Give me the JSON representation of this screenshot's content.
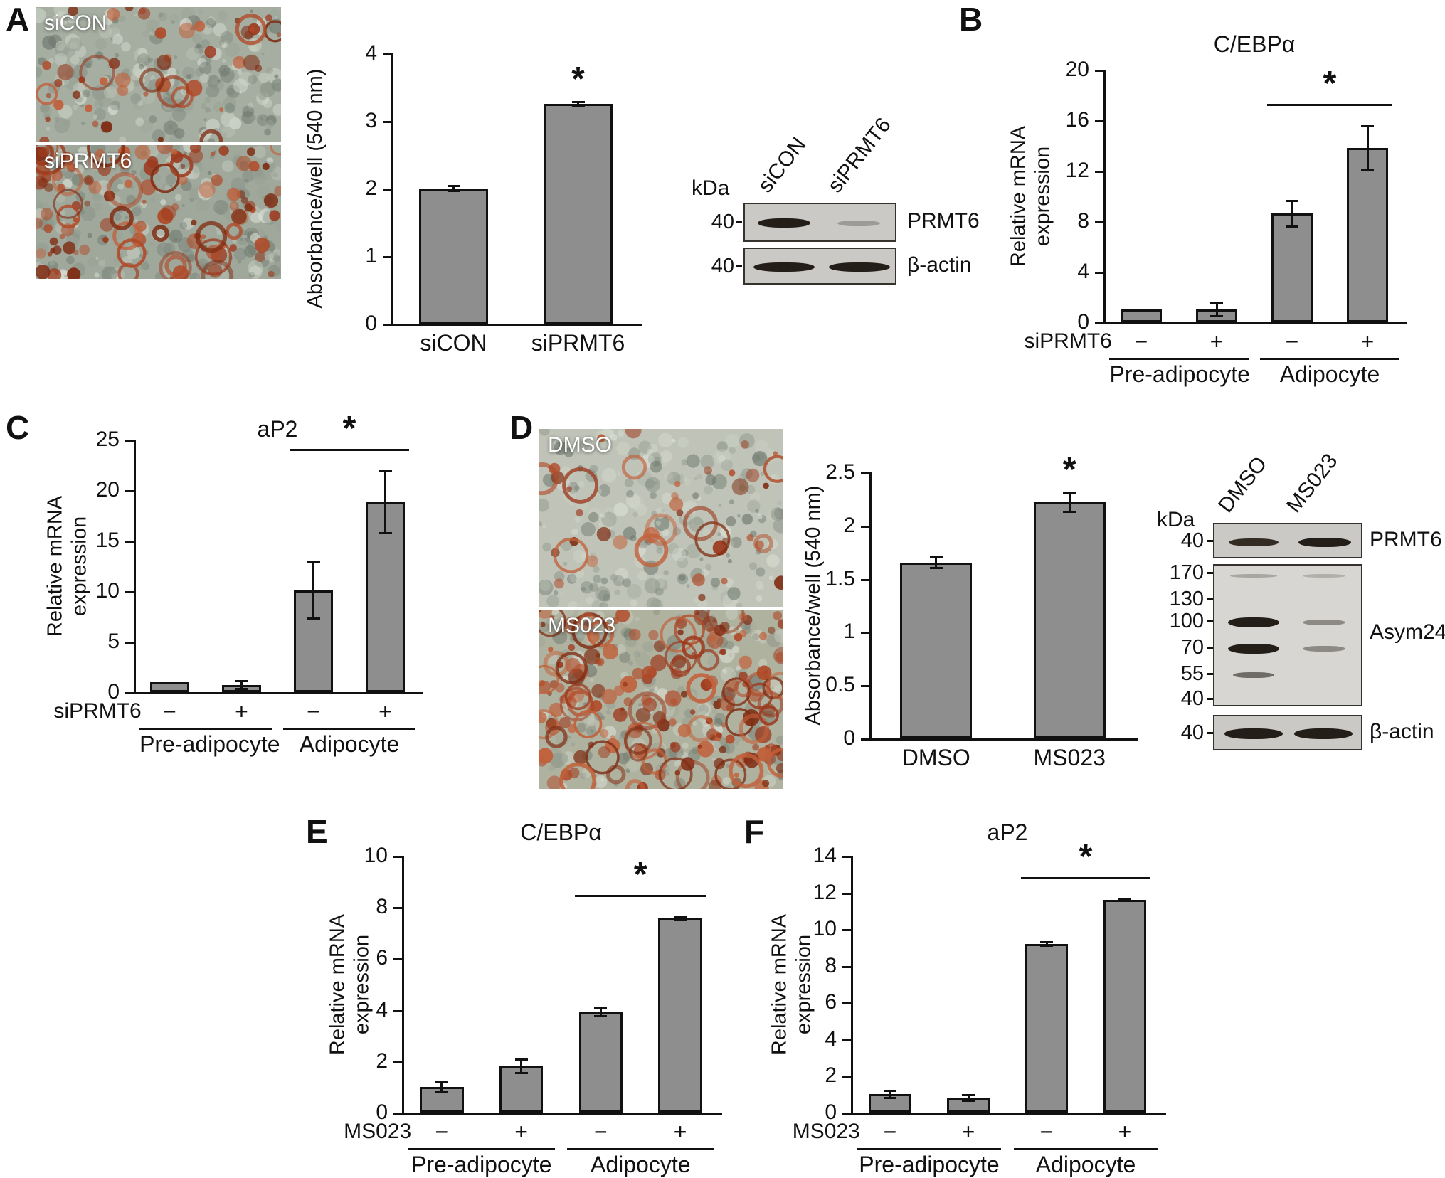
{
  "panels": {
    "A": {
      "label": "A",
      "images": [
        {
          "label": "siCON"
        },
        {
          "label": "siPRMT6"
        }
      ],
      "blot": {
        "kda_header": "kDa",
        "lanes": [
          "siCON",
          "siPRMT6"
        ],
        "rows": [
          {
            "marker": "40",
            "label": "PRMT6"
          },
          {
            "marker": "40",
            "label": "β-actin"
          }
        ]
      }
    },
    "B": {
      "label": "B"
    },
    "C": {
      "label": "C"
    },
    "D": {
      "label": "D",
      "images": [
        {
          "label": "DMSO"
        },
        {
          "label": "MS023"
        }
      ],
      "blot": {
        "kda_header": "kDa",
        "lanes": [
          "DMSO",
          "MS023"
        ],
        "sections": [
          {
            "markers": [
              "40"
            ],
            "label": "PRMT6"
          },
          {
            "markers": [
              "170",
              "130",
              "100",
              "70",
              "55",
              "40"
            ],
            "label": "Asym24"
          },
          {
            "markers": [
              "40"
            ],
            "label": "β-actin"
          }
        ]
      }
    },
    "E": {
      "label": "E"
    },
    "F": {
      "label": "F"
    }
  },
  "chart_data": [
    {
      "panel": "A",
      "type": "bar",
      "title": "",
      "categories": [
        "siCON",
        "siPRMT6"
      ],
      "values": [
        2.0,
        3.25
      ],
      "errors": [
        0.05,
        0.05
      ],
      "ylabel": "Absorbance/well (540 nm)",
      "xlabel": "",
      "ylim": [
        0,
        4
      ],
      "yticks": [
        0,
        1,
        2,
        3,
        4
      ],
      "sig_bar_index": 1,
      "sig_symbol": "*",
      "grid": false,
      "legend": false
    },
    {
      "panel": "B",
      "type": "bar",
      "title": "C/EBPα",
      "categories": [
        "−",
        "+",
        "−",
        "+"
      ],
      "values": [
        1.0,
        1.0,
        8.6,
        13.8
      ],
      "errors": [
        0,
        0.6,
        1.1,
        1.8
      ],
      "ylabel": "Relative mRNA\nexpression",
      "xlabel": "",
      "ylim": [
        0,
        20
      ],
      "yticks": [
        0,
        4,
        8,
        12,
        16,
        20
      ],
      "row_label": "siPRMT6",
      "groups": [
        {
          "label": "Pre-adipocyte",
          "span": [
            0,
            1
          ]
        },
        {
          "label": "Adipocyte",
          "span": [
            2,
            3
          ]
        }
      ],
      "bracket": {
        "from": 2,
        "to": 3,
        "symbol": "*"
      },
      "grid": false,
      "legend": false
    },
    {
      "panel": "C",
      "type": "bar",
      "title": "aP2",
      "categories": [
        "−",
        "+",
        "−",
        "+"
      ],
      "values": [
        1.0,
        0.7,
        10.1,
        18.8
      ],
      "errors": [
        0,
        0.5,
        2.9,
        3.2
      ],
      "ylabel": "Relative mRNA\nexpression",
      "xlabel": "",
      "ylim": [
        0,
        25
      ],
      "yticks": [
        0,
        5,
        10,
        15,
        20,
        25
      ],
      "row_label": "siPRMT6",
      "groups": [
        {
          "label": "Pre-adipocyte",
          "span": [
            0,
            1
          ]
        },
        {
          "label": "Adipocyte",
          "span": [
            2,
            3
          ]
        }
      ],
      "bracket": {
        "from": 2,
        "to": 3,
        "symbol": "*"
      },
      "grid": false,
      "legend": false
    },
    {
      "panel": "D",
      "type": "bar",
      "title": "",
      "categories": [
        "DMSO",
        "MS023"
      ],
      "values": [
        1.65,
        2.22
      ],
      "errors": [
        0.06,
        0.1
      ],
      "ylabel": "Absorbance/well (540 nm)",
      "xlabel": "",
      "ylim": [
        0,
        2.5
      ],
      "yticks": [
        0,
        0.5,
        1,
        1.5,
        2,
        2.5
      ],
      "sig_bar_index": 1,
      "sig_symbol": "*",
      "grid": false,
      "legend": false
    },
    {
      "panel": "E",
      "type": "bar",
      "title": "C/EBPα",
      "categories": [
        "−",
        "+",
        "−",
        "+"
      ],
      "values": [
        1.0,
        1.8,
        3.9,
        7.55
      ],
      "errors": [
        0.25,
        0.3,
        0.2,
        0.1
      ],
      "ylabel": "Relative mRNA\nexpression",
      "xlabel": "",
      "ylim": [
        0,
        10
      ],
      "yticks": [
        0,
        2,
        4,
        6,
        8,
        10
      ],
      "row_label": "MS023",
      "groups": [
        {
          "label": "Pre-adipocyte",
          "span": [
            0,
            1
          ]
        },
        {
          "label": "Adipocyte",
          "span": [
            2,
            3
          ]
        }
      ],
      "bracket": {
        "from": 2,
        "to": 3,
        "symbol": "*"
      },
      "grid": false,
      "legend": false
    },
    {
      "panel": "F",
      "type": "bar",
      "title": "aP2",
      "categories": [
        "−",
        "+",
        "−",
        "+"
      ],
      "values": [
        1.0,
        0.8,
        9.2,
        11.6
      ],
      "errors": [
        0.25,
        0.2,
        0.15,
        0.08
      ],
      "ylabel": "Relative mRNA\nexpression",
      "xlabel": "",
      "ylim": [
        0,
        14
      ],
      "yticks": [
        0,
        2,
        4,
        6,
        8,
        10,
        12,
        14
      ],
      "row_label": "MS023",
      "groups": [
        {
          "label": "Pre-adipocyte",
          "span": [
            0,
            1
          ]
        },
        {
          "label": "Adipocyte",
          "span": [
            2,
            3
          ]
        }
      ],
      "bracket": {
        "from": 2,
        "to": 3,
        "symbol": "*"
      },
      "grid": false,
      "legend": false
    }
  ],
  "colors": {
    "bar_fill": "#8e8e8e",
    "bar_edge": "#111111",
    "axis": "#111111",
    "significance": "#111111",
    "gel_background": "#cac9c5",
    "band": "#241e18",
    "micro_label_text": "#ffffff"
  }
}
